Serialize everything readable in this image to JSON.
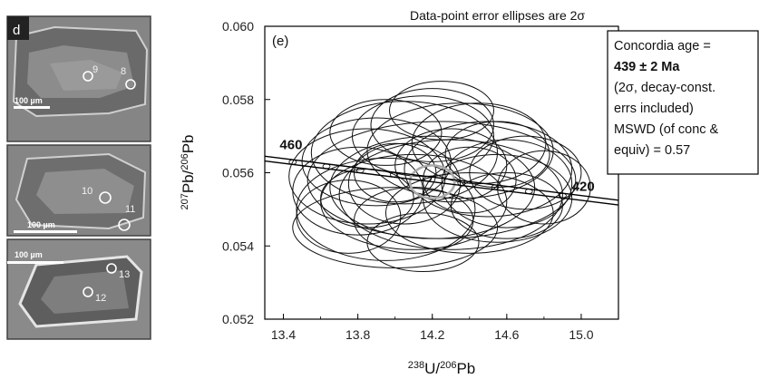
{
  "images": {
    "panel_label": "d",
    "top": {
      "scale": "100 µm",
      "spots": [
        "9",
        "8"
      ]
    },
    "middle": {
      "scale": "100 µm",
      "spots": [
        "10",
        "11"
      ]
    },
    "bottom": {
      "scale": "100 µm",
      "spots": [
        "13",
        "12"
      ]
    }
  },
  "chart_data": {
    "type": "scatter",
    "title": "Data-point error ellipses are 2σ",
    "panel_label": "(e)",
    "xlabel": "238U/206Pb",
    "ylabel": "207Pb/206Pb",
    "xlim": [
      13.3,
      15.2
    ],
    "ylim": [
      0.052,
      0.06
    ],
    "x_ticks": [
      "13.4",
      "13.8",
      "14.2",
      "14.6",
      "15.0"
    ],
    "y_ticks": [
      "0.052",
      "0.054",
      "0.056",
      "0.058",
      "0.060"
    ],
    "concordia_labels": [
      {
        "text": "460",
        "x": 13.42,
        "y": 0.0565
      },
      {
        "text": "420",
        "x": 14.95,
        "y": 0.0555
      }
    ],
    "concordia_age_ellipse": {
      "x": 14.2,
      "y": 0.05575,
      "rx": 0.12,
      "ry": 0.00045,
      "color": "#aaaaaa"
    },
    "ellipses": [
      {
        "x": 14.25,
        "y": 0.0558,
        "rx": 0.72,
        "ry": 0.0016
      },
      {
        "x": 14.2,
        "y": 0.0556,
        "rx": 0.55,
        "ry": 0.0014
      },
      {
        "x": 14.05,
        "y": 0.05655,
        "rx": 0.5,
        "ry": 0.0014
      },
      {
        "x": 14.3,
        "y": 0.0554,
        "rx": 0.6,
        "ry": 0.0015
      },
      {
        "x": 13.85,
        "y": 0.0559,
        "rx": 0.42,
        "ry": 0.0013
      },
      {
        "x": 14.5,
        "y": 0.0561,
        "rx": 0.45,
        "ry": 0.0013
      },
      {
        "x": 14.1,
        "y": 0.0552,
        "rx": 0.5,
        "ry": 0.0013
      },
      {
        "x": 14.35,
        "y": 0.0566,
        "rx": 0.5,
        "ry": 0.0013
      },
      {
        "x": 13.95,
        "y": 0.055,
        "rx": 0.48,
        "ry": 0.0014
      },
      {
        "x": 14.55,
        "y": 0.0553,
        "rx": 0.4,
        "ry": 0.0012
      },
      {
        "x": 14.15,
        "y": 0.057,
        "rx": 0.38,
        "ry": 0.0011
      },
      {
        "x": 14.0,
        "y": 0.0545,
        "rx": 0.55,
        "ry": 0.0011
      },
      {
        "x": 14.6,
        "y": 0.0557,
        "rx": 0.35,
        "ry": 0.0012
      },
      {
        "x": 13.9,
        "y": 0.0563,
        "rx": 0.4,
        "ry": 0.0012
      },
      {
        "x": 14.4,
        "y": 0.0549,
        "rx": 0.45,
        "ry": 0.0011
      },
      {
        "x": 14.2,
        "y": 0.0573,
        "rx": 0.33,
        "ry": 0.001
      },
      {
        "x": 13.8,
        "y": 0.0555,
        "rx": 0.35,
        "ry": 0.0012
      },
      {
        "x": 14.45,
        "y": 0.0568,
        "rx": 0.36,
        "ry": 0.0011
      },
      {
        "x": 14.7,
        "y": 0.056,
        "rx": 0.3,
        "ry": 0.001
      },
      {
        "x": 14.05,
        "y": 0.0557,
        "rx": 0.3,
        "ry": 0.0011
      },
      {
        "x": 14.3,
        "y": 0.0562,
        "rx": 0.3,
        "ry": 0.001
      },
      {
        "x": 14.1,
        "y": 0.0547,
        "rx": 0.32,
        "ry": 0.0009
      },
      {
        "x": 14.6,
        "y": 0.0551,
        "rx": 0.3,
        "ry": 0.0009
      },
      {
        "x": 13.75,
        "y": 0.0548,
        "rx": 0.28,
        "ry": 0.001
      },
      {
        "x": 14.25,
        "y": 0.0577,
        "rx": 0.28,
        "ry": 0.0008
      },
      {
        "x": 14.8,
        "y": 0.0556,
        "rx": 0.25,
        "ry": 0.001
      },
      {
        "x": 13.95,
        "y": 0.0571,
        "rx": 0.3,
        "ry": 0.0009
      },
      {
        "x": 14.4,
        "y": 0.0558,
        "rx": 0.25,
        "ry": 0.0009
      },
      {
        "x": 14.0,
        "y": 0.056,
        "rx": 0.22,
        "ry": 0.0008
      },
      {
        "x": 14.15,
        "y": 0.0541,
        "rx": 0.3,
        "ry": 0.0008
      },
      {
        "x": 14.55,
        "y": 0.0565,
        "rx": 0.28,
        "ry": 0.0009
      },
      {
        "x": 13.85,
        "y": 0.0553,
        "rx": 0.25,
        "ry": 0.0008
      }
    ],
    "info_box": {
      "line1": "Concordia age =",
      "line2": "439 ± 2 Ma",
      "line3": "(2σ, decay-const.",
      "line4": "errs included)",
      "line5": "MSWD (of conc &",
      "line6": "equiv) = 0.57"
    }
  }
}
